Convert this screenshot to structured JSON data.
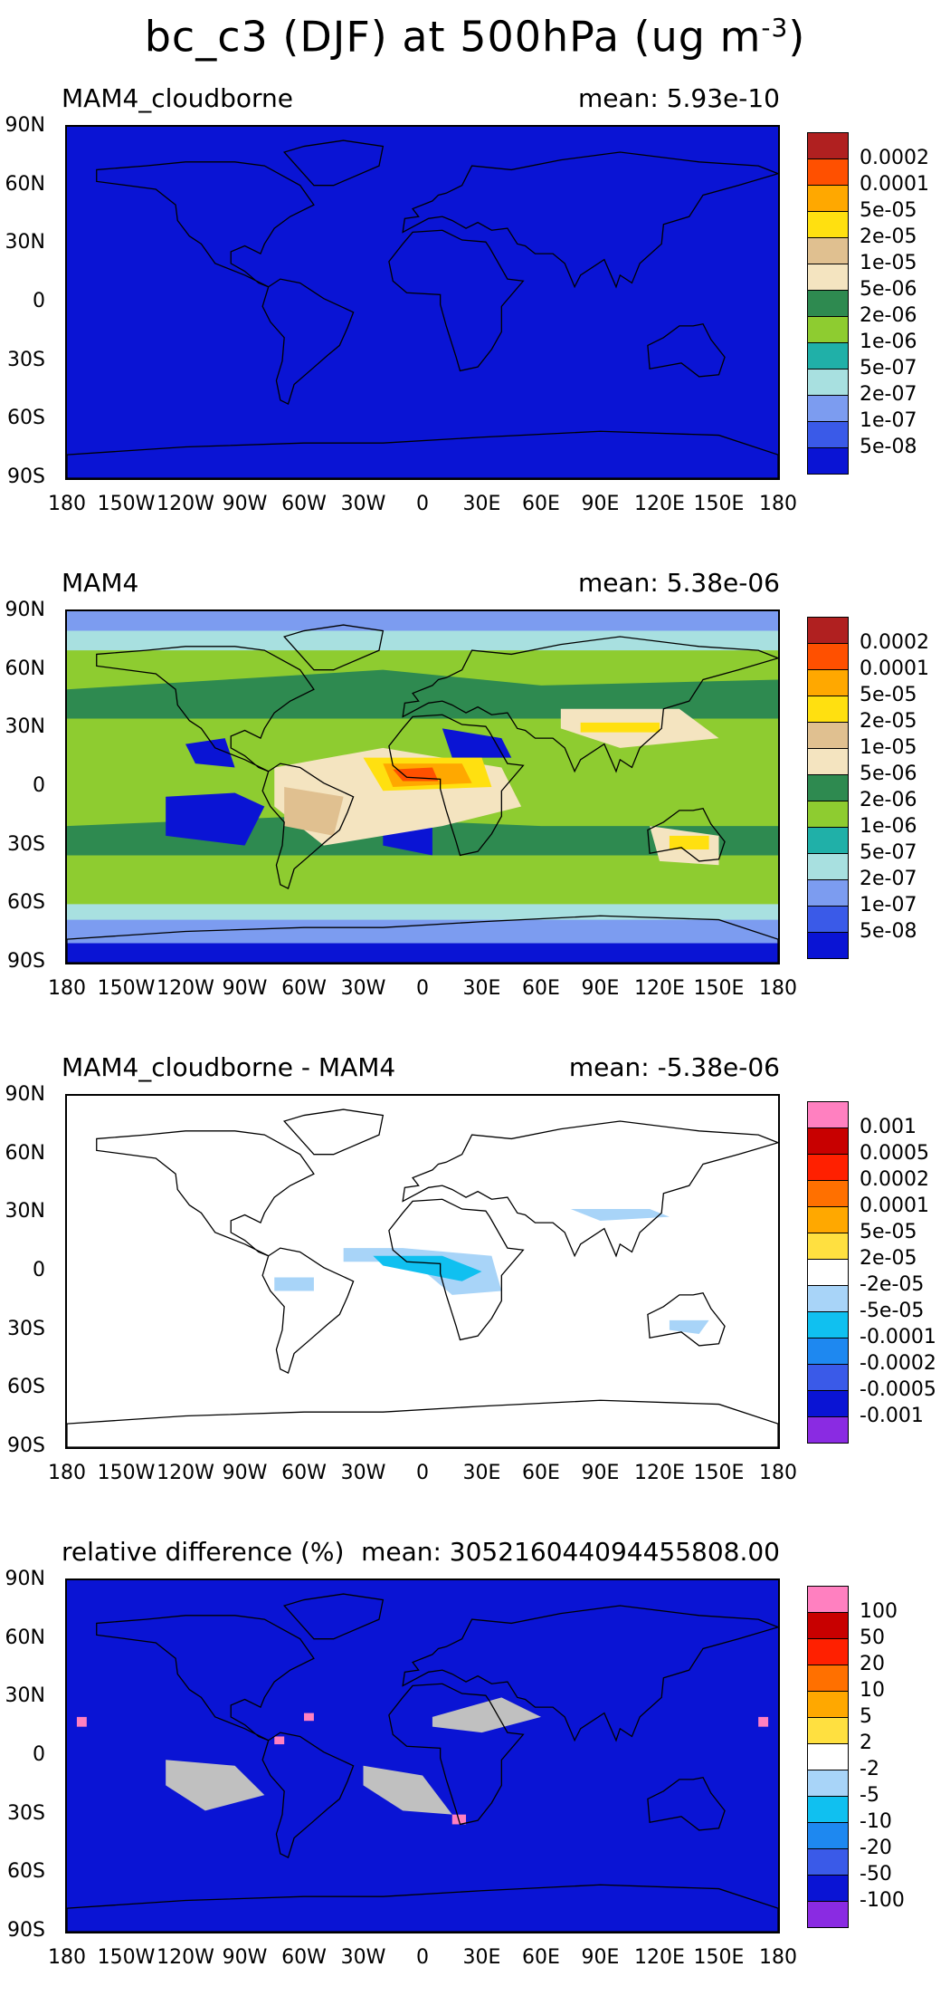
{
  "title": {
    "main": "bc_c3 (DJF) at 500hPa (ug m",
    "sup": "-3",
    "close": ")"
  },
  "lat_labels": [
    "90N",
    "60N",
    "30N",
    "0",
    "30S",
    "60S",
    "90S"
  ],
  "lon_labels": [
    "180",
    "150W",
    "120W",
    "90W",
    "60W",
    "30W",
    "0",
    "30E",
    "60E",
    "90E",
    "120E",
    "150E",
    "180"
  ],
  "panels": [
    {
      "name": "MAM4_cloudborne",
      "mean": "mean: 5.93e-10",
      "background": "#0a14d4",
      "colors": [
        "#0a14d4",
        "#3a5ae8",
        "#7c9cf0",
        "#a8e0e0",
        "#20b0a8",
        "#8ecc30",
        "#2e8a50",
        "#f4e4c0",
        "#e0c090",
        "#ffe010",
        "#ffa800",
        "#ff5000",
        "#b02020"
      ],
      "levels": [
        "5e-08",
        "1e-07",
        "2e-07",
        "5e-07",
        "1e-06",
        "2e-06",
        "5e-06",
        "1e-05",
        "2e-05",
        "5e-05",
        "0.0001",
        "0.0002"
      ]
    },
    {
      "name": "MAM4",
      "mean": "mean: 5.38e-06",
      "background": "#8ecc30",
      "colors": [
        "#0a14d4",
        "#3a5ae8",
        "#7c9cf0",
        "#a8e0e0",
        "#20b0a8",
        "#8ecc30",
        "#2e8a50",
        "#f4e4c0",
        "#e0c090",
        "#ffe010",
        "#ffa800",
        "#ff5000",
        "#b02020"
      ],
      "levels": [
        "5e-08",
        "1e-07",
        "2e-07",
        "5e-07",
        "1e-06",
        "2e-06",
        "5e-06",
        "1e-05",
        "2e-05",
        "5e-05",
        "0.0001",
        "0.0002"
      ]
    },
    {
      "name": "MAM4_cloudborne - MAM4",
      "mean": "mean: -5.38e-06",
      "background": "#ffffff",
      "colors": [
        "#8a2be2",
        "#0a14d4",
        "#3a5ae8",
        "#1e88f0",
        "#10c0f0",
        "#a8d4f8",
        "#ffffff",
        "#ffe040",
        "#ffa800",
        "#ff7000",
        "#ff2000",
        "#c80000",
        "#ff80c0"
      ],
      "levels": [
        "-0.001",
        "-0.0005",
        "-0.0002",
        "-0.0001",
        "-5e-05",
        "-2e-05",
        "2e-05",
        "5e-05",
        "0.0001",
        "0.0002",
        "0.0005",
        "0.001"
      ]
    },
    {
      "name": "relative difference (%)",
      "mean": "mean: 305216044094455808.00",
      "background": "#0a14d4",
      "colors": [
        "#8a2be2",
        "#0a14d4",
        "#3a5ae8",
        "#1e88f0",
        "#10c0f0",
        "#a8d4f8",
        "#ffffff",
        "#ffe040",
        "#ffa800",
        "#ff7000",
        "#ff2000",
        "#c80000",
        "#ff80c0"
      ],
      "levels": [
        "-100",
        "-50",
        "-20",
        "-10",
        "-5",
        "-2",
        "2",
        "5",
        "10",
        "20",
        "50",
        "100"
      ]
    }
  ]
}
